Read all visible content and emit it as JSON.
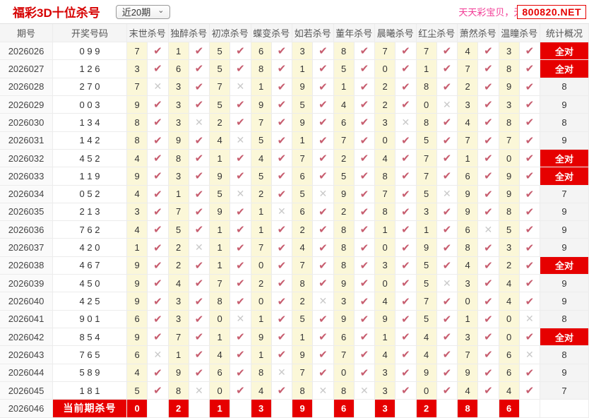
{
  "page": {
    "title": "福彩3D十位杀号",
    "range_selector": {
      "value": "近20期"
    },
    "promo_text": "天天彩宝贝，无",
    "promo_site": "800820.NET"
  },
  "colors": {
    "accent_red": "#e60000",
    "check_rose": "#c75d6f",
    "cross_gray": "#c9c9c9",
    "kill_cell_yellow": "#fbf7d8",
    "promo_pink": "#f23a95"
  },
  "icons": {
    "check": "✔",
    "cross": "✕",
    "chevron_down": "⌄"
  },
  "table": {
    "columns": [
      "期号",
      "开奖号码",
      "末世杀号",
      "独醉杀号",
      "初凉杀号",
      "蝶变杀号",
      "如若杀号",
      "董年杀号",
      "晨曦杀号",
      "红尘杀号",
      "萧然杀号",
      "温瞳杀号",
      "统计概况"
    ],
    "all_correct_label": "全对",
    "rows": [
      {
        "period": "2026026",
        "number": "0 9 9",
        "kills": [
          {
            "v": "7",
            "hit": true
          },
          {
            "v": "1",
            "hit": true
          },
          {
            "v": "5",
            "hit": true
          },
          {
            "v": "6",
            "hit": true
          },
          {
            "v": "3",
            "hit": true
          },
          {
            "v": "8",
            "hit": true
          },
          {
            "v": "7",
            "hit": true
          },
          {
            "v": "7",
            "hit": true
          },
          {
            "v": "4",
            "hit": true
          },
          {
            "v": "3",
            "hit": true
          }
        ],
        "stat": "全对"
      },
      {
        "period": "2026027",
        "number": "1 2 6",
        "kills": [
          {
            "v": "3",
            "hit": true
          },
          {
            "v": "6",
            "hit": true
          },
          {
            "v": "5",
            "hit": true
          },
          {
            "v": "8",
            "hit": true
          },
          {
            "v": "1",
            "hit": true
          },
          {
            "v": "5",
            "hit": true
          },
          {
            "v": "0",
            "hit": true
          },
          {
            "v": "1",
            "hit": true
          },
          {
            "v": "7",
            "hit": true
          },
          {
            "v": "8",
            "hit": true
          }
        ],
        "stat": "全对"
      },
      {
        "period": "2026028",
        "number": "2 7 0",
        "kills": [
          {
            "v": "7",
            "hit": false
          },
          {
            "v": "3",
            "hit": true
          },
          {
            "v": "7",
            "hit": false
          },
          {
            "v": "1",
            "hit": true
          },
          {
            "v": "9",
            "hit": true
          },
          {
            "v": "1",
            "hit": true
          },
          {
            "v": "2",
            "hit": true
          },
          {
            "v": "8",
            "hit": true
          },
          {
            "v": "2",
            "hit": true
          },
          {
            "v": "9",
            "hit": true
          }
        ],
        "stat": "8"
      },
      {
        "period": "2026029",
        "number": "0 0 3",
        "kills": [
          {
            "v": "9",
            "hit": true
          },
          {
            "v": "3",
            "hit": true
          },
          {
            "v": "5",
            "hit": true
          },
          {
            "v": "9",
            "hit": true
          },
          {
            "v": "5",
            "hit": true
          },
          {
            "v": "4",
            "hit": true
          },
          {
            "v": "2",
            "hit": true
          },
          {
            "v": "0",
            "hit": false
          },
          {
            "v": "3",
            "hit": true
          },
          {
            "v": "3",
            "hit": true
          }
        ],
        "stat": "9"
      },
      {
        "period": "2026030",
        "number": "1 3 4",
        "kills": [
          {
            "v": "8",
            "hit": true
          },
          {
            "v": "3",
            "hit": false
          },
          {
            "v": "2",
            "hit": true
          },
          {
            "v": "7",
            "hit": true
          },
          {
            "v": "9",
            "hit": true
          },
          {
            "v": "6",
            "hit": true
          },
          {
            "v": "3",
            "hit": false
          },
          {
            "v": "8",
            "hit": true
          },
          {
            "v": "4",
            "hit": true
          },
          {
            "v": "8",
            "hit": true
          }
        ],
        "stat": "8"
      },
      {
        "period": "2026031",
        "number": "1 4 2",
        "kills": [
          {
            "v": "8",
            "hit": true
          },
          {
            "v": "9",
            "hit": true
          },
          {
            "v": "4",
            "hit": false
          },
          {
            "v": "5",
            "hit": true
          },
          {
            "v": "1",
            "hit": true
          },
          {
            "v": "7",
            "hit": true
          },
          {
            "v": "0",
            "hit": true
          },
          {
            "v": "5",
            "hit": true
          },
          {
            "v": "7",
            "hit": true
          },
          {
            "v": "7",
            "hit": true
          }
        ],
        "stat": "9"
      },
      {
        "period": "2026032",
        "number": "4 5 2",
        "kills": [
          {
            "v": "4",
            "hit": true
          },
          {
            "v": "8",
            "hit": true
          },
          {
            "v": "1",
            "hit": true
          },
          {
            "v": "4",
            "hit": true
          },
          {
            "v": "7",
            "hit": true
          },
          {
            "v": "2",
            "hit": true
          },
          {
            "v": "4",
            "hit": true
          },
          {
            "v": "7",
            "hit": true
          },
          {
            "v": "1",
            "hit": true
          },
          {
            "v": "0",
            "hit": true
          }
        ],
        "stat": "全对"
      },
      {
        "period": "2026033",
        "number": "1 1 9",
        "kills": [
          {
            "v": "9",
            "hit": true
          },
          {
            "v": "3",
            "hit": true
          },
          {
            "v": "9",
            "hit": true
          },
          {
            "v": "5",
            "hit": true
          },
          {
            "v": "6",
            "hit": true
          },
          {
            "v": "5",
            "hit": true
          },
          {
            "v": "8",
            "hit": true
          },
          {
            "v": "7",
            "hit": true
          },
          {
            "v": "6",
            "hit": true
          },
          {
            "v": "9",
            "hit": true
          }
        ],
        "stat": "全对"
      },
      {
        "period": "2026034",
        "number": "0 5 2",
        "kills": [
          {
            "v": "4",
            "hit": true
          },
          {
            "v": "1",
            "hit": true
          },
          {
            "v": "5",
            "hit": false
          },
          {
            "v": "2",
            "hit": true
          },
          {
            "v": "5",
            "hit": false
          },
          {
            "v": "9",
            "hit": true
          },
          {
            "v": "7",
            "hit": true
          },
          {
            "v": "5",
            "hit": false
          },
          {
            "v": "9",
            "hit": true
          },
          {
            "v": "9",
            "hit": true
          }
        ],
        "stat": "7"
      },
      {
        "period": "2026035",
        "number": "2 1 3",
        "kills": [
          {
            "v": "3",
            "hit": true
          },
          {
            "v": "7",
            "hit": true
          },
          {
            "v": "9",
            "hit": true
          },
          {
            "v": "1",
            "hit": false
          },
          {
            "v": "6",
            "hit": true
          },
          {
            "v": "2",
            "hit": true
          },
          {
            "v": "8",
            "hit": true
          },
          {
            "v": "3",
            "hit": true
          },
          {
            "v": "9",
            "hit": true
          },
          {
            "v": "8",
            "hit": true
          }
        ],
        "stat": "9"
      },
      {
        "period": "2026036",
        "number": "7 6 2",
        "kills": [
          {
            "v": "4",
            "hit": true
          },
          {
            "v": "5",
            "hit": true
          },
          {
            "v": "1",
            "hit": true
          },
          {
            "v": "1",
            "hit": true
          },
          {
            "v": "2",
            "hit": true
          },
          {
            "v": "8",
            "hit": true
          },
          {
            "v": "1",
            "hit": true
          },
          {
            "v": "1",
            "hit": true
          },
          {
            "v": "6",
            "hit": false
          },
          {
            "v": "5",
            "hit": true
          }
        ],
        "stat": "9"
      },
      {
        "period": "2026037",
        "number": "4 2 0",
        "kills": [
          {
            "v": "1",
            "hit": true
          },
          {
            "v": "2",
            "hit": false
          },
          {
            "v": "1",
            "hit": true
          },
          {
            "v": "7",
            "hit": true
          },
          {
            "v": "4",
            "hit": true
          },
          {
            "v": "8",
            "hit": true
          },
          {
            "v": "0",
            "hit": true
          },
          {
            "v": "9",
            "hit": true
          },
          {
            "v": "8",
            "hit": true
          },
          {
            "v": "3",
            "hit": true
          }
        ],
        "stat": "9"
      },
      {
        "period": "2026038",
        "number": "4 6 7",
        "kills": [
          {
            "v": "9",
            "hit": true
          },
          {
            "v": "2",
            "hit": true
          },
          {
            "v": "1",
            "hit": true
          },
          {
            "v": "0",
            "hit": true
          },
          {
            "v": "7",
            "hit": true
          },
          {
            "v": "8",
            "hit": true
          },
          {
            "v": "3",
            "hit": true
          },
          {
            "v": "5",
            "hit": true
          },
          {
            "v": "4",
            "hit": true
          },
          {
            "v": "2",
            "hit": true
          }
        ],
        "stat": "全对"
      },
      {
        "period": "2026039",
        "number": "4 5 0",
        "kills": [
          {
            "v": "9",
            "hit": true
          },
          {
            "v": "4",
            "hit": true
          },
          {
            "v": "7",
            "hit": true
          },
          {
            "v": "2",
            "hit": true
          },
          {
            "v": "8",
            "hit": true
          },
          {
            "v": "9",
            "hit": true
          },
          {
            "v": "0",
            "hit": true
          },
          {
            "v": "5",
            "hit": false
          },
          {
            "v": "3",
            "hit": true
          },
          {
            "v": "4",
            "hit": true
          }
        ],
        "stat": "9"
      },
      {
        "period": "2026040",
        "number": "4 2 5",
        "kills": [
          {
            "v": "9",
            "hit": true
          },
          {
            "v": "3",
            "hit": true
          },
          {
            "v": "8",
            "hit": true
          },
          {
            "v": "0",
            "hit": true
          },
          {
            "v": "2",
            "hit": false
          },
          {
            "v": "3",
            "hit": true
          },
          {
            "v": "4",
            "hit": true
          },
          {
            "v": "7",
            "hit": true
          },
          {
            "v": "0",
            "hit": true
          },
          {
            "v": "4",
            "hit": true
          }
        ],
        "stat": "9"
      },
      {
        "period": "2026041",
        "number": "9 0 1",
        "kills": [
          {
            "v": "6",
            "hit": true
          },
          {
            "v": "3",
            "hit": true
          },
          {
            "v": "0",
            "hit": false
          },
          {
            "v": "1",
            "hit": true
          },
          {
            "v": "5",
            "hit": true
          },
          {
            "v": "9",
            "hit": true
          },
          {
            "v": "9",
            "hit": true
          },
          {
            "v": "5",
            "hit": true
          },
          {
            "v": "1",
            "hit": true
          },
          {
            "v": "0",
            "hit": false
          }
        ],
        "stat": "8"
      },
      {
        "period": "2026042",
        "number": "8 5 4",
        "kills": [
          {
            "v": "9",
            "hit": true
          },
          {
            "v": "7",
            "hit": true
          },
          {
            "v": "1",
            "hit": true
          },
          {
            "v": "9",
            "hit": true
          },
          {
            "v": "1",
            "hit": true
          },
          {
            "v": "6",
            "hit": true
          },
          {
            "v": "1",
            "hit": true
          },
          {
            "v": "4",
            "hit": true
          },
          {
            "v": "3",
            "hit": true
          },
          {
            "v": "0",
            "hit": true
          }
        ],
        "stat": "全对"
      },
      {
        "period": "2026043",
        "number": "7 6 5",
        "kills": [
          {
            "v": "6",
            "hit": false
          },
          {
            "v": "1",
            "hit": true
          },
          {
            "v": "4",
            "hit": true
          },
          {
            "v": "1",
            "hit": true
          },
          {
            "v": "9",
            "hit": true
          },
          {
            "v": "7",
            "hit": true
          },
          {
            "v": "4",
            "hit": true
          },
          {
            "v": "4",
            "hit": true
          },
          {
            "v": "7",
            "hit": true
          },
          {
            "v": "6",
            "hit": false
          }
        ],
        "stat": "8"
      },
      {
        "period": "2026044",
        "number": "5 8 9",
        "kills": [
          {
            "v": "4",
            "hit": true
          },
          {
            "v": "9",
            "hit": true
          },
          {
            "v": "6",
            "hit": true
          },
          {
            "v": "8",
            "hit": false
          },
          {
            "v": "7",
            "hit": true
          },
          {
            "v": "0",
            "hit": true
          },
          {
            "v": "3",
            "hit": true
          },
          {
            "v": "9",
            "hit": true
          },
          {
            "v": "9",
            "hit": true
          },
          {
            "v": "6",
            "hit": true
          }
        ],
        "stat": "9"
      },
      {
        "period": "2026045",
        "number": "1 8 1",
        "kills": [
          {
            "v": "5",
            "hit": true
          },
          {
            "v": "8",
            "hit": false
          },
          {
            "v": "0",
            "hit": true
          },
          {
            "v": "4",
            "hit": true
          },
          {
            "v": "8",
            "hit": false
          },
          {
            "v": "8",
            "hit": false
          },
          {
            "v": "3",
            "hit": true
          },
          {
            "v": "0",
            "hit": true
          },
          {
            "v": "4",
            "hit": true
          },
          {
            "v": "4",
            "hit": true
          }
        ],
        "stat": "7"
      }
    ],
    "current_row": {
      "period": "2026046",
      "label": "当前期杀号",
      "kills": [
        "0",
        "2",
        "1",
        "3",
        "9",
        "6",
        "3",
        "2",
        "8",
        "6"
      ],
      "stat": ""
    }
  }
}
